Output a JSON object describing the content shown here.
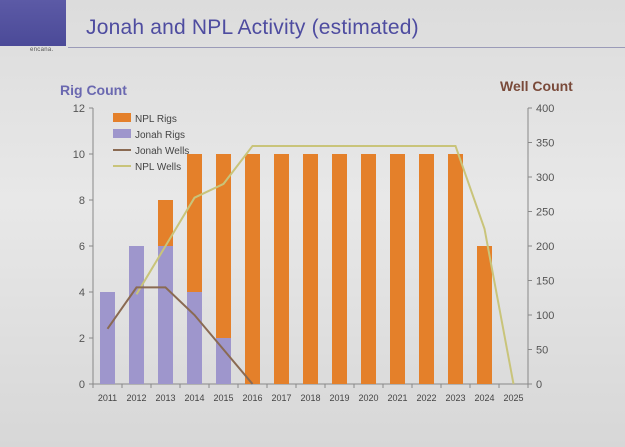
{
  "slide": {
    "title": "Jonah and NPL Activity (estimated)",
    "logo_text": "encana."
  },
  "colors": {
    "npl_rigs": "#e4802a",
    "jonah_rigs": "#9e96cc",
    "jonah_wells": "#8a6a52",
    "npl_wells": "#c9c47a",
    "title": "#4e4ca0",
    "rig_axis": "#6a68b0",
    "well_axis": "#7a4a3a"
  },
  "chart_data": {
    "type": "bar",
    "categories": [
      "2011",
      "2012",
      "2013",
      "2014",
      "2015",
      "2016",
      "2017",
      "2018",
      "2019",
      "2020",
      "2021",
      "2022",
      "2023",
      "2024",
      "2025"
    ],
    "left_axis": {
      "label": "Rig Count",
      "ylim": [
        0,
        12
      ],
      "ticks": [
        0,
        2,
        4,
        6,
        8,
        10,
        12
      ]
    },
    "right_axis": {
      "label": "Well Count",
      "ylim": [
        0,
        400
      ],
      "ticks": [
        0,
        50,
        100,
        150,
        200,
        250,
        300,
        350,
        400
      ]
    },
    "stacked": true,
    "series": [
      {
        "name": "NPL Rigs",
        "type": "bar",
        "axis": "left",
        "values": [
          0,
          0,
          2,
          6,
          8,
          10,
          10,
          10,
          10,
          10,
          10,
          10,
          10,
          6,
          0
        ]
      },
      {
        "name": "Jonah Rigs",
        "type": "bar",
        "axis": "left",
        "values": [
          4,
          6,
          6,
          4,
          2,
          0,
          0,
          0,
          0,
          0,
          0,
          0,
          0,
          0,
          0
        ]
      },
      {
        "name": "Jonah Wells",
        "type": "line",
        "axis": "right",
        "values": [
          80,
          140,
          140,
          100,
          50,
          0,
          null,
          null,
          null,
          null,
          null,
          null,
          null,
          null,
          null
        ]
      },
      {
        "name": "NPL Wells",
        "type": "line",
        "axis": "right",
        "values": [
          null,
          130,
          200,
          270,
          290,
          345,
          345,
          345,
          345,
          345,
          345,
          345,
          345,
          225,
          0
        ]
      }
    ],
    "legend": "top-left",
    "grid": false
  }
}
